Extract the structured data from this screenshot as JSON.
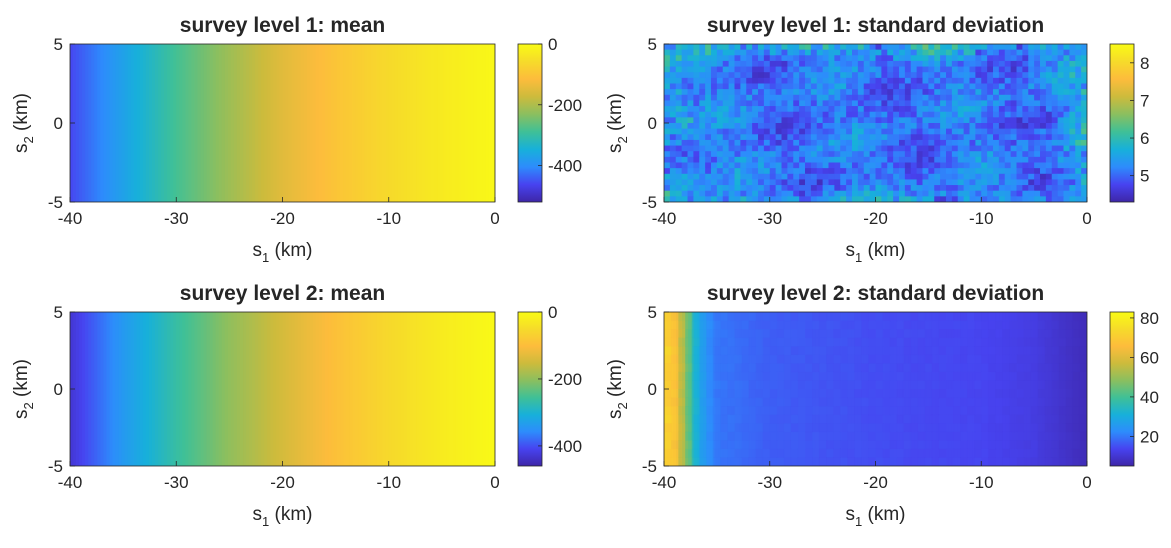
{
  "figure": {
    "colormap": [
      "#3e26a8",
      "#4743f0",
      "#2d8cfc",
      "#17b0da",
      "#3fc097",
      "#8bbf5f",
      "#cdbb3c",
      "#fdbc3c",
      "#f6db2a",
      "#f9fb15"
    ]
  },
  "chart_data": [
    {
      "type": "heatmap",
      "title": "survey level 1: mean",
      "xlabel": {
        "base": "s",
        "sub": "1",
        "rest": " (km)"
      },
      "ylabel": {
        "base": "s",
        "sub": "2",
        "rest": " (km)"
      },
      "xlim": [
        -40,
        0
      ],
      "ylim": [
        -5,
        5
      ],
      "xticks": [
        -40,
        -30,
        -20,
        -10,
        0
      ],
      "yticks": [
        -5,
        0,
        5
      ],
      "clim": [
        -520,
        0
      ],
      "cticks": [
        -400,
        -200,
        0
      ],
      "field": "mean",
      "profile_x": [
        -40,
        -35,
        -30,
        -25,
        -20,
        -15,
        -10,
        -5,
        0
      ],
      "profile_values": [
        -460,
        -370,
        -285,
        -215,
        -150,
        -100,
        -60,
        -30,
        -5
      ]
    },
    {
      "type": "heatmap",
      "title": "survey level 1: standard deviation",
      "xlabel": {
        "base": "s",
        "sub": "1",
        "rest": " (km)"
      },
      "ylabel": {
        "base": "s",
        "sub": "2",
        "rest": " (km)"
      },
      "xlim": [
        -40,
        0
      ],
      "ylim": [
        -5,
        5
      ],
      "xticks": [
        -40,
        -30,
        -20,
        -10,
        0
      ],
      "yticks": [
        -5,
        0,
        5
      ],
      "clim": [
        4.3,
        8.5
      ],
      "cticks": [
        5,
        6,
        7,
        8
      ],
      "field": "noise",
      "base_value": 5.0,
      "amplitude": 0.7
    },
    {
      "type": "heatmap",
      "title": "survey level 2: mean",
      "xlabel": {
        "base": "s",
        "sub": "1",
        "rest": " (km)"
      },
      "ylabel": {
        "base": "s",
        "sub": "2",
        "rest": " (km)"
      },
      "xlim": [
        -40,
        0
      ],
      "ylim": [
        -5,
        5
      ],
      "xticks": [
        -40,
        -30,
        -20,
        -10,
        0
      ],
      "yticks": [
        -5,
        0,
        5
      ],
      "clim": [
        -460,
        0
      ],
      "cticks": [
        -400,
        -200,
        0
      ],
      "field": "mean",
      "profile_x": [
        -40,
        -35,
        -30,
        -25,
        -20,
        -15,
        -10,
        -5,
        0
      ],
      "profile_values": [
        -430,
        -340,
        -265,
        -200,
        -145,
        -95,
        -55,
        -25,
        -3
      ]
    },
    {
      "type": "heatmap",
      "title": "survey level 2: standard deviation",
      "xlabel": {
        "base": "s",
        "sub": "1",
        "rest": " (km)"
      },
      "ylabel": {
        "base": "s",
        "sub": "2",
        "rest": " (km)"
      },
      "xlim": [
        -40,
        0
      ],
      "ylim": [
        -5,
        5
      ],
      "xticks": [
        -40,
        -30,
        -20,
        -10,
        0
      ],
      "yticks": [
        -5,
        0,
        5
      ],
      "clim": [
        5,
        83
      ],
      "cticks": [
        20,
        40,
        60,
        80
      ],
      "field": "profile",
      "profile_x": [
        -40,
        -39,
        -38,
        -37,
        -36,
        -35,
        -30,
        -20,
        -10,
        -5,
        -2,
        0
      ],
      "profile_values": [
        74,
        68,
        50,
        32,
        24,
        20,
        17,
        15,
        14,
        12,
        9,
        7
      ]
    }
  ]
}
